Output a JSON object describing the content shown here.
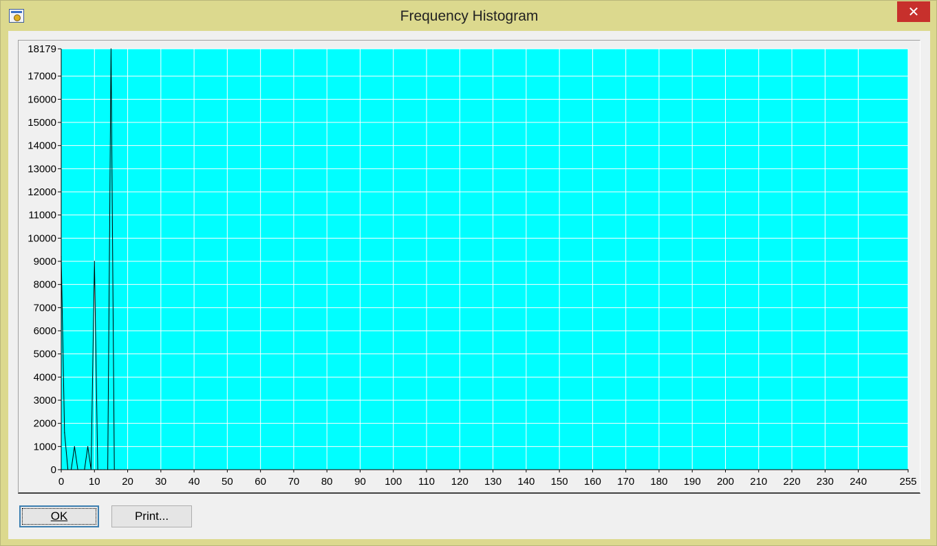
{
  "window": {
    "title": "Frequency Histogram",
    "close_glyph": "✕",
    "icon": "app-icon"
  },
  "buttons": {
    "ok_label": "OK",
    "print_label": "Print..."
  },
  "chart_data": {
    "type": "line",
    "title": "",
    "xlabel": "",
    "ylabel": "",
    "xlim": [
      0,
      255
    ],
    "ylim": [
      0,
      18179
    ],
    "x_ticks": [
      0,
      10,
      20,
      30,
      40,
      50,
      60,
      70,
      80,
      90,
      100,
      110,
      120,
      130,
      140,
      150,
      160,
      170,
      180,
      190,
      200,
      210,
      220,
      230,
      240,
      255
    ],
    "y_ticks": [
      0,
      1000,
      2000,
      3000,
      4000,
      5000,
      6000,
      7000,
      8000,
      9000,
      10000,
      11000,
      12000,
      13000,
      14000,
      15000,
      16000,
      17000,
      18179
    ],
    "grid": true,
    "colors": {
      "background": "#00ffff",
      "grid": "#ffffff",
      "line": "#000000"
    },
    "series": [
      {
        "x": [
          0,
          1,
          2,
          3,
          4,
          5,
          6,
          7,
          8,
          9,
          10,
          11,
          12,
          13,
          14,
          15,
          16,
          17,
          18,
          19,
          20,
          255
        ],
        "values": [
          9200,
          1600,
          0,
          0,
          1000,
          0,
          0,
          0,
          1000,
          0,
          9000,
          0,
          0,
          0,
          0,
          18179,
          0,
          0,
          0,
          0,
          0,
          0
        ]
      }
    ]
  }
}
